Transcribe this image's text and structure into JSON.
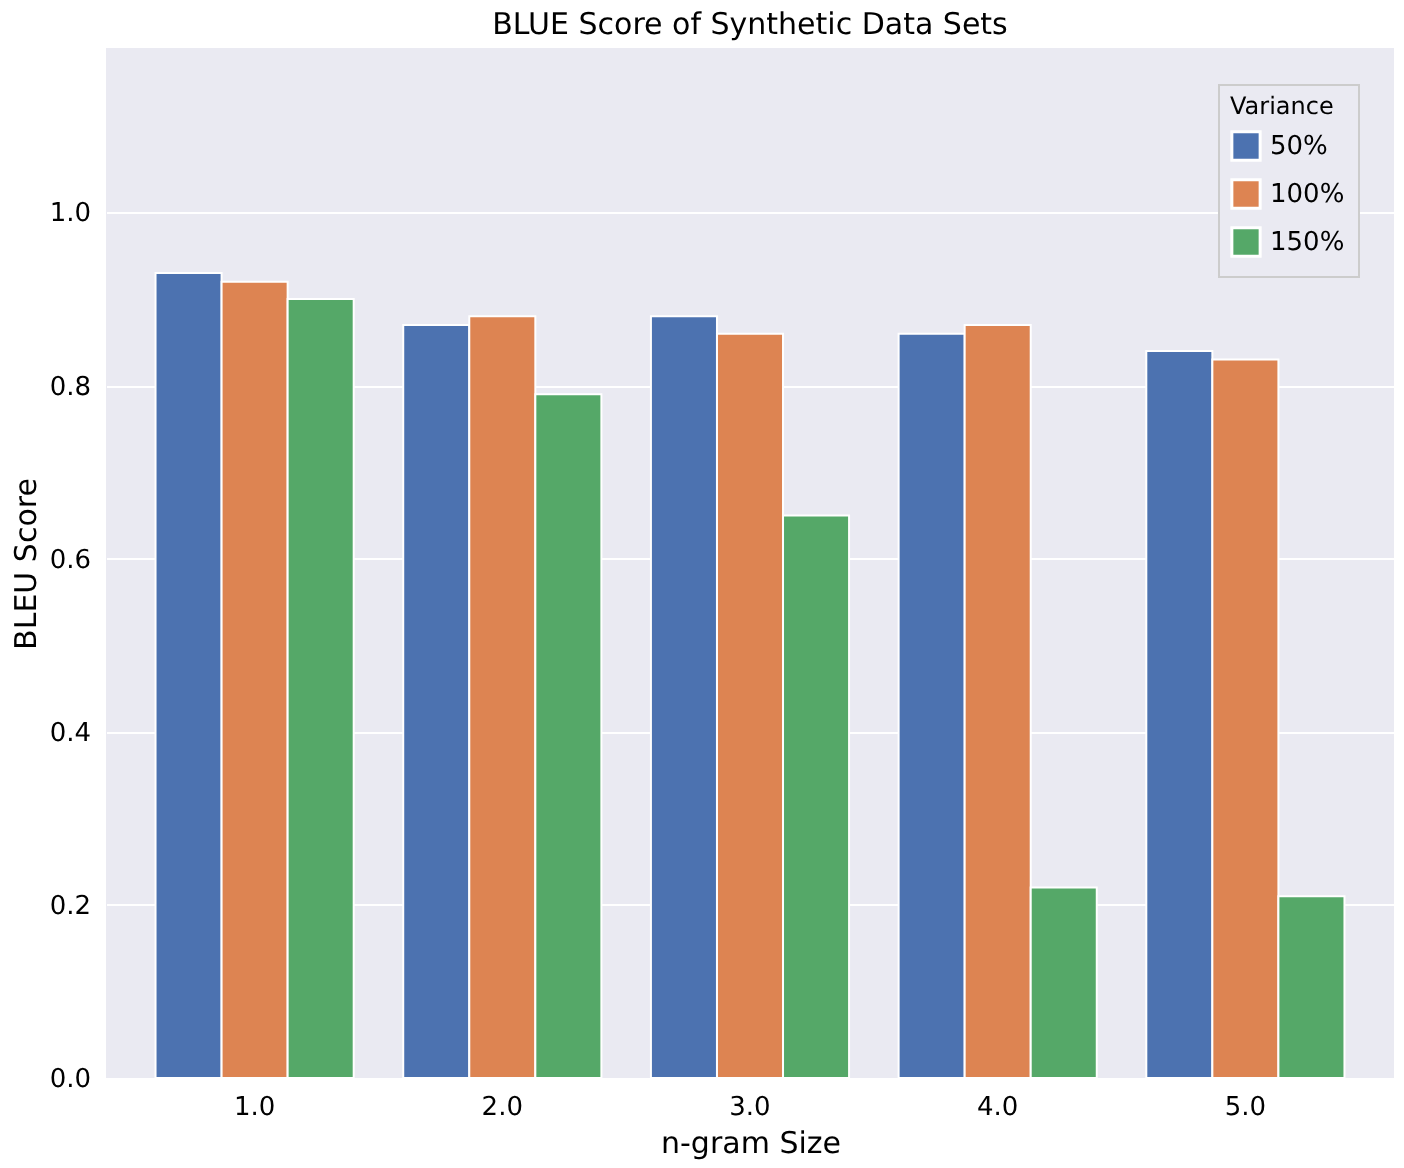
{
  "chart_data": {
    "type": "bar",
    "title": "BLUE Score of Synthetic Data Sets",
    "xlabel": "n-gram Size",
    "ylabel": "BLEU Score",
    "legend_title": "Variance",
    "categories": [
      "1.0",
      "2.0",
      "3.0",
      "4.0",
      "5.0"
    ],
    "series": [
      {
        "name": "50%",
        "color": "#4c72b0",
        "values": [
          0.93,
          0.87,
          0.88,
          0.86,
          0.84
        ]
      },
      {
        "name": "100%",
        "color": "#dd8452",
        "values": [
          0.92,
          0.88,
          0.86,
          0.87,
          0.83
        ]
      },
      {
        "name": "150%",
        "color": "#55a868",
        "values": [
          0.9,
          0.79,
          0.65,
          0.22,
          0.21
        ]
      }
    ],
    "ylim": [
      0,
      1.19
    ],
    "yticks": [
      {
        "value": 0,
        "label": "0.0"
      },
      0.2,
      0.4,
      0.6,
      0.8,
      {
        "value": 1,
        "label": "1.0"
      }
    ],
    "grid": "y",
    "legend": "top right"
  }
}
